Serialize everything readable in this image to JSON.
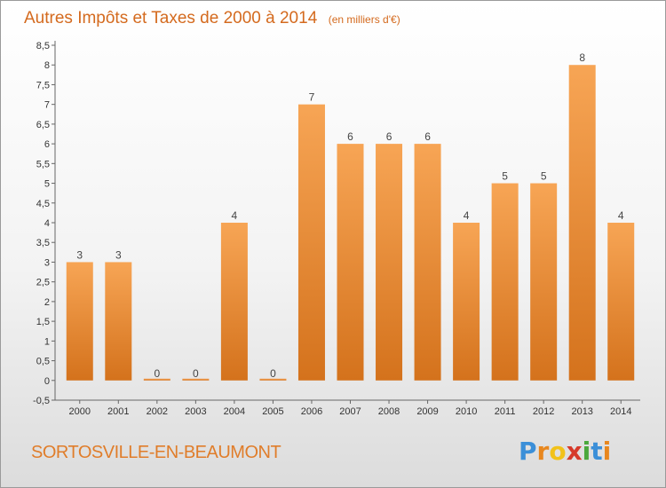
{
  "chart_data": {
    "type": "bar",
    "title": "Autres Impôts et Taxes de 2000 à 2014",
    "unit_note": "(en milliers d'€)",
    "categories": [
      "2000",
      "2001",
      "2002",
      "2003",
      "2004",
      "2005",
      "2006",
      "2007",
      "2008",
      "2009",
      "2010",
      "2011",
      "2012",
      "2013",
      "2014"
    ],
    "values": [
      3,
      3,
      0,
      0,
      4,
      0,
      7,
      6,
      6,
      6,
      4,
      5,
      5,
      8,
      4
    ],
    "data_labels": [
      "3",
      "3",
      "0",
      "0",
      "4",
      "0",
      "7",
      "6",
      "6",
      "6",
      "4",
      "5",
      "5",
      "8",
      "4"
    ],
    "y_ticks": [
      "-0,5",
      "0",
      "0,5",
      "1",
      "1,5",
      "2",
      "2,5",
      "3",
      "3,5",
      "4",
      "4,5",
      "5",
      "5,5",
      "6",
      "6,5",
      "7",
      "7,5",
      "8",
      "8,5"
    ],
    "ylim": [
      -0.5,
      8.5
    ],
    "grid": false,
    "bar_color_top": "#f7a555",
    "bar_color_bottom": "#d4721c",
    "xlabel": "",
    "ylabel": ""
  },
  "location": "SORTOSVILLE-EN-BEAUMONT",
  "logo": {
    "letters": [
      "P",
      "r",
      "o",
      "x",
      "i",
      "t",
      "i"
    ],
    "colors": [
      "#3b8fd8",
      "#e8871e",
      "#f2c21a",
      "#d63a2a",
      "#4aa83c",
      "#3b8fd8",
      "#e8871e"
    ]
  }
}
